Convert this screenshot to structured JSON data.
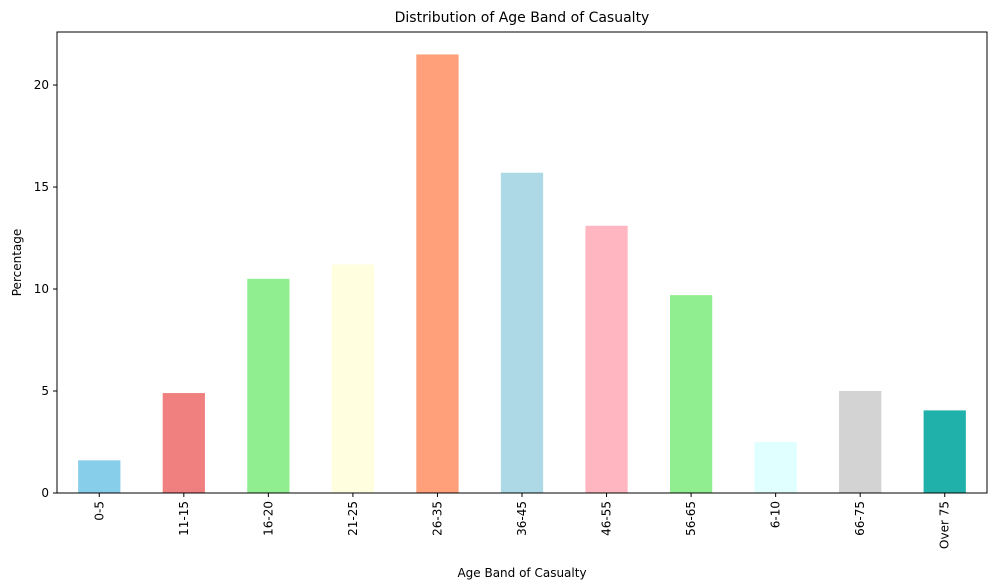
{
  "chart_data": {
    "type": "bar",
    "title": "Distribution of Age Band of Casualty",
    "xlabel": "Age Band of Casualty",
    "ylabel": "Percentage",
    "categories": [
      "0-5",
      "11-15",
      "16-20",
      "21-25",
      "26-35",
      "36-45",
      "46-55",
      "56-65",
      "6-10",
      "66-75",
      "Over 75"
    ],
    "values": [
      1.6,
      4.9,
      10.5,
      11.2,
      21.5,
      15.7,
      13.1,
      9.7,
      2.5,
      5.0,
      4.05
    ],
    "colors": [
      "#87ceeb",
      "#f08080",
      "#90ee90",
      "#ffffe0",
      "#ffa07a",
      "#add8e6",
      "#ffb6c1",
      "#90ee90",
      "#e0ffff",
      "#d3d3d3",
      "#20b2aa"
    ],
    "ylim": [
      0,
      22.6
    ],
    "yticks": [
      0,
      5,
      10,
      15,
      20
    ],
    "grid": false,
    "legend": "none"
  }
}
